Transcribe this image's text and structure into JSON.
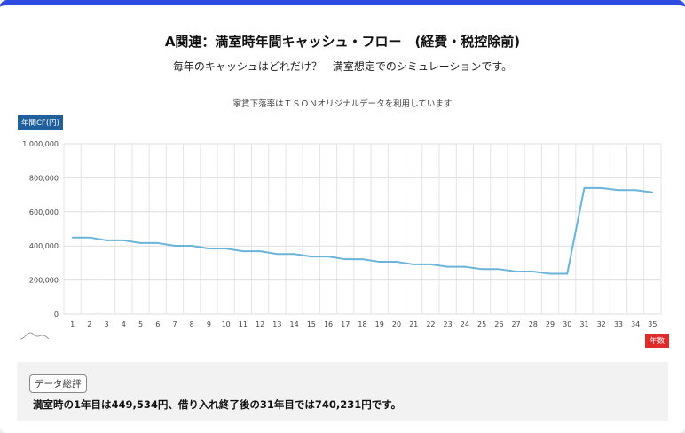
{
  "header": {
    "title": "A関連：満室時年間キャッシュ・フロー　(経費・税控除前)",
    "subtitle": "毎年のキャッシュはどれだけ？　満室想定でのシミュレーションです。",
    "note": "家賃下落率はＴＳＯＮオリジナルデータを利用しています"
  },
  "accent_color": "#2d4be0",
  "chart_data": {
    "type": "line",
    "title": "",
    "ylabel": "年間CF(円)",
    "xlabel": "年数",
    "ylim": [
      0,
      1000000
    ],
    "yticks": [
      "0",
      "200,000",
      "400,000",
      "600,000",
      "800,000",
      "1,000,000"
    ],
    "ytick_values": [
      0,
      200000,
      400000,
      600000,
      800000,
      1000000
    ],
    "categories": [
      "1",
      "2",
      "3",
      "4",
      "5",
      "6",
      "7",
      "8",
      "9",
      "10",
      "11",
      "12",
      "13",
      "14",
      "15",
      "16",
      "17",
      "18",
      "19",
      "20",
      "21",
      "22",
      "23",
      "24",
      "25",
      "26",
      "27",
      "28",
      "29",
      "30",
      "31",
      "32",
      "33",
      "34",
      "35"
    ],
    "series": [
      {
        "color": "#6ab4d9",
        "values": [
          449534,
          449534,
          433000,
          433000,
          417000,
          417000,
          401000,
          401000,
          385000,
          385000,
          369000,
          369000,
          353000,
          353000,
          338000,
          338000,
          322000,
          322000,
          307000,
          307000,
          292000,
          292000,
          278000,
          278000,
          264000,
          264000,
          250000,
          250000,
          237000,
          237000,
          740231,
          740231,
          728000,
          728000,
          715000
        ]
      }
    ],
    "grid": true,
    "legend": "none"
  },
  "summary": {
    "button_label": "データ総評",
    "text": "満室時の1年目は449,534円、借り入れ終了後の31年目では740,231円です。"
  }
}
